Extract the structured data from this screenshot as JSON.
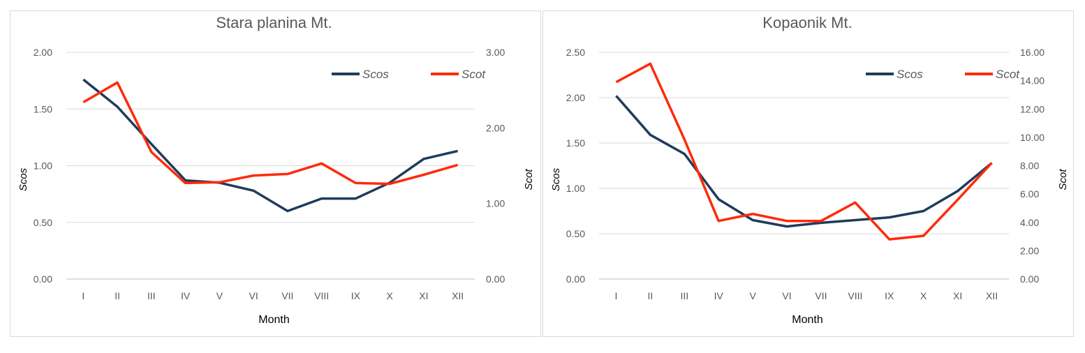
{
  "chart_data": [
    {
      "type": "line",
      "title": "Stara planina Mt.",
      "xlabel": "Month",
      "ylabel": "Scos",
      "y2label": "Scot",
      "categories": [
        "I",
        "II",
        "III",
        "IV",
        "V",
        "VI",
        "VII",
        "VIII",
        "IX",
        "X",
        "XI",
        "XII"
      ],
      "ylim": [
        0,
        2.0
      ],
      "ystep": 0.5,
      "y2lim": [
        0,
        3.0
      ],
      "y2step": 1.0,
      "grid": true,
      "legend": "top-right",
      "series": [
        {
          "name": "Scos",
          "axis": "left",
          "color": "#1f3b5c",
          "values": [
            1.76,
            1.52,
            1.19,
            0.87,
            0.85,
            0.78,
            0.6,
            0.71,
            0.71,
            0.85,
            1.06,
            1.13
          ]
        },
        {
          "name": "Scot",
          "axis": "right",
          "color": "#ff2a0a",
          "values": [
            2.34,
            2.6,
            1.68,
            1.27,
            1.28,
            1.37,
            1.39,
            1.53,
            1.27,
            1.26,
            1.38,
            1.51
          ]
        }
      ]
    },
    {
      "type": "line",
      "title": "Kopaonik Mt.",
      "xlabel": "Month",
      "ylabel": "Scos",
      "y2label": "Scot",
      "categories": [
        "I",
        "II",
        "III",
        "IV",
        "V",
        "VI",
        "VII",
        "VIII",
        "IX",
        "X",
        "XI",
        "XII"
      ],
      "ylim": [
        0,
        2.5
      ],
      "ystep": 0.5,
      "y2lim": [
        0,
        16.0
      ],
      "y2step": 2.0,
      "grid": true,
      "legend": "top-right",
      "series": [
        {
          "name": "Scos",
          "axis": "left",
          "color": "#1f3b5c",
          "values": [
            2.02,
            1.59,
            1.38,
            0.88,
            0.65,
            0.58,
            0.62,
            0.65,
            0.68,
            0.75,
            0.97,
            1.28
          ]
        },
        {
          "name": "Scot",
          "axis": "right",
          "color": "#ff2a0a",
          "values": [
            13.9,
            15.2,
            9.85,
            4.1,
            4.6,
            4.1,
            4.1,
            5.4,
            2.8,
            3.05,
            5.6,
            8.2
          ]
        }
      ]
    }
  ]
}
